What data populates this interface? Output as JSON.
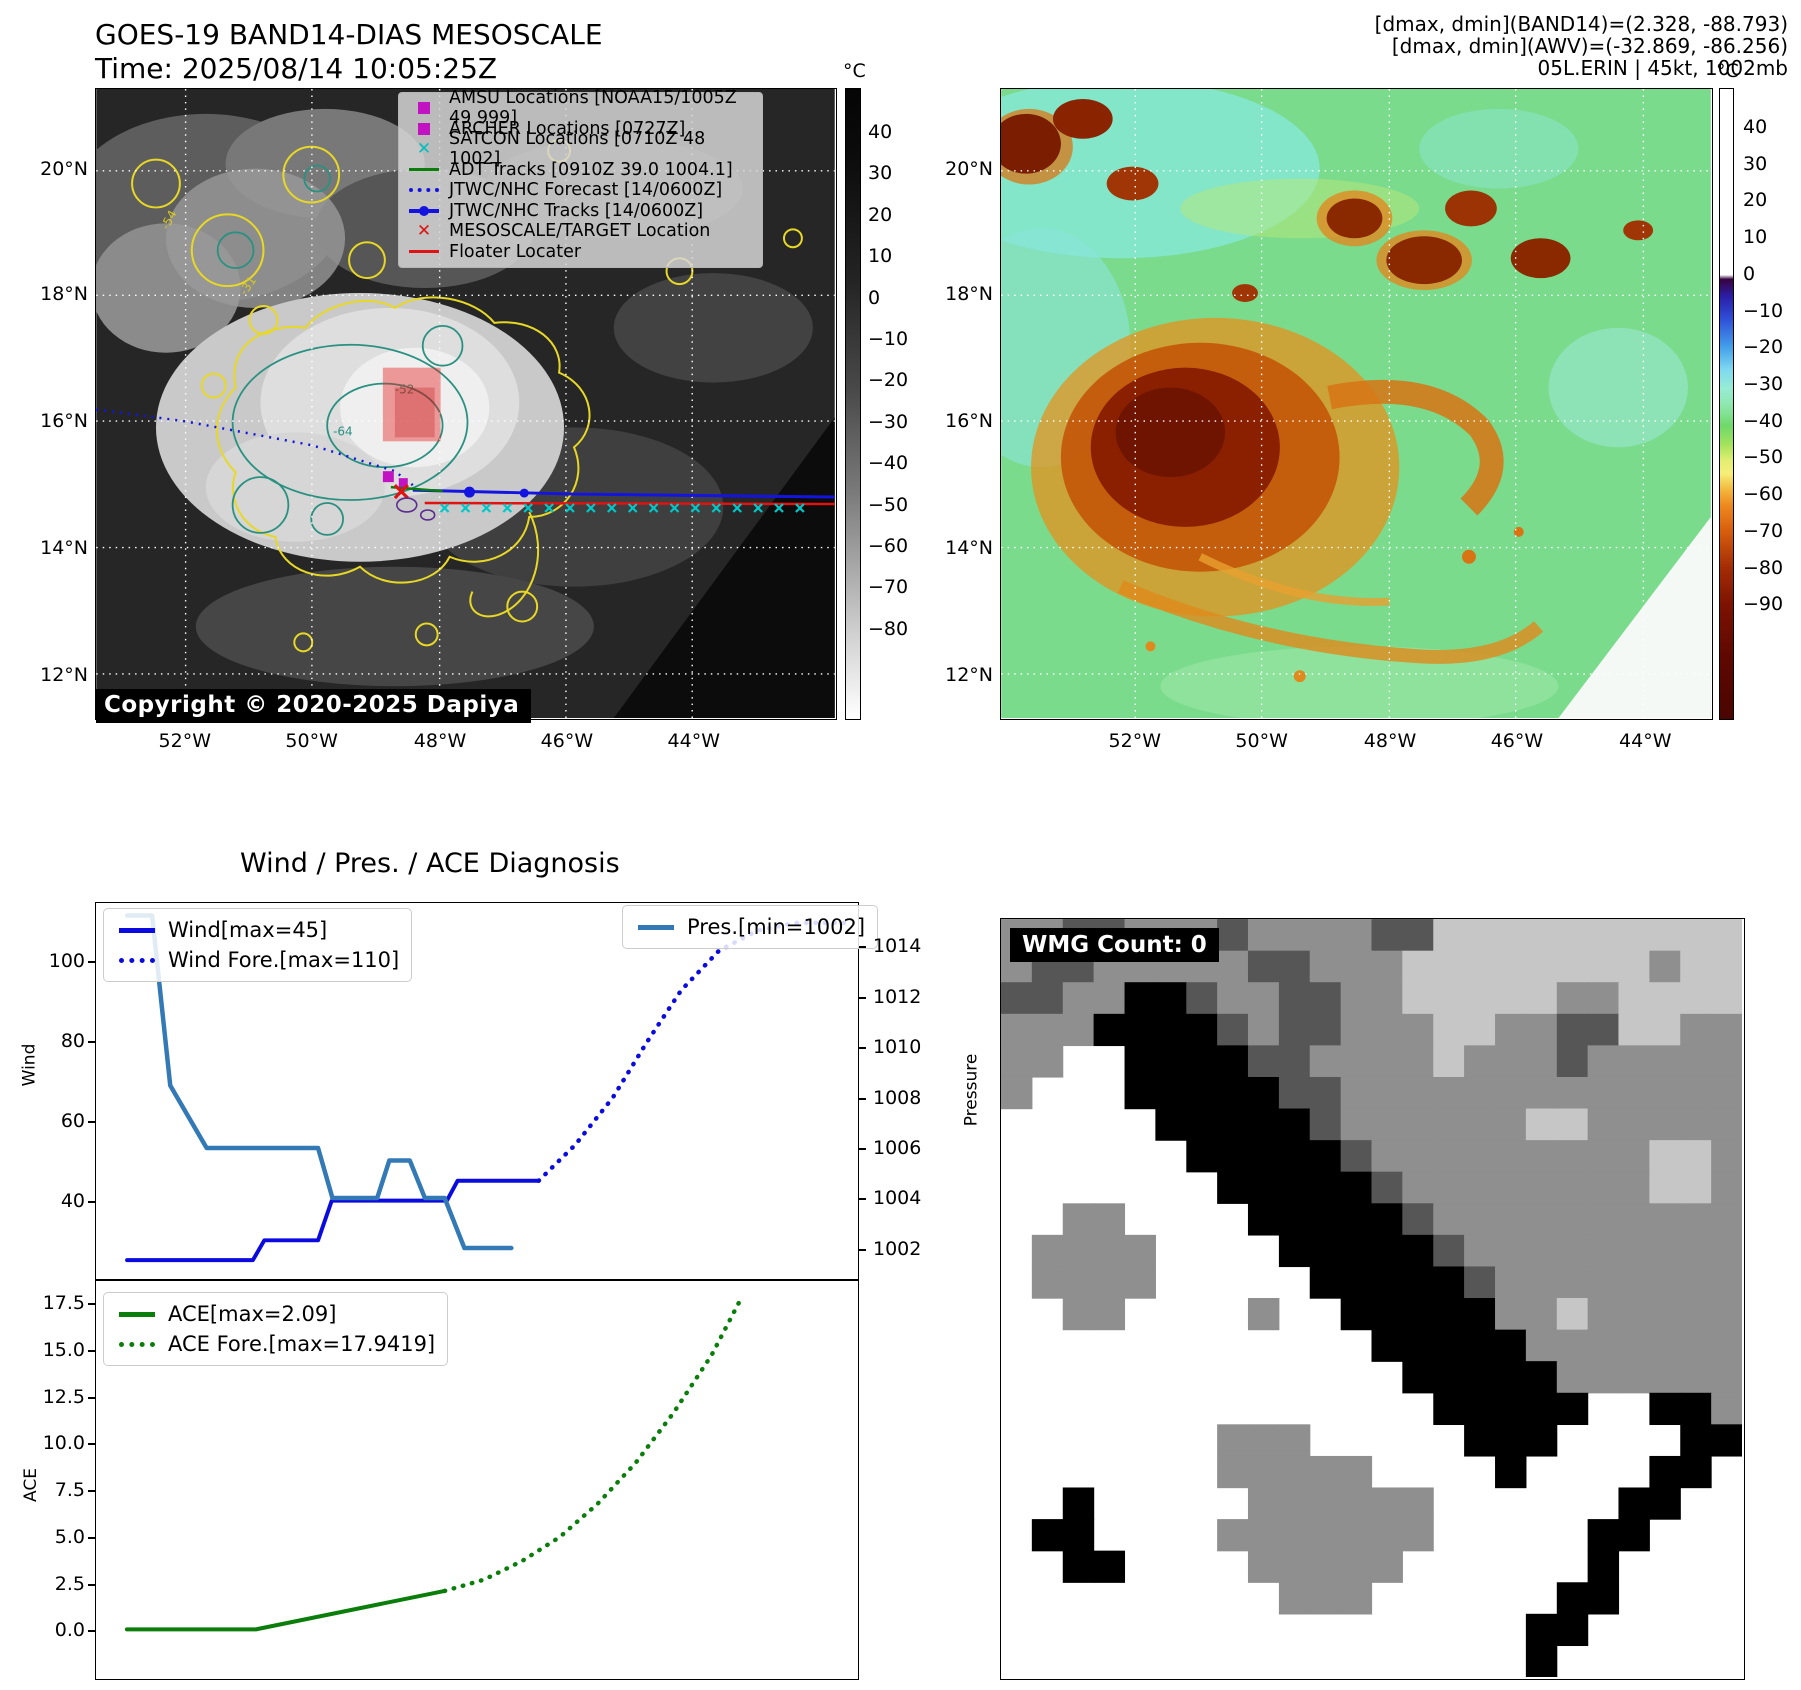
{
  "band14": {
    "title": "GOES-19 BAND14-DIAS MESOSCALE",
    "time": "Time: 2025/08/14 10:05:25Z",
    "copyright": "Copyright © 2020-2025 Dapiya",
    "colorbar": {
      "unit": "°C",
      "ticks": [
        "40",
        "30",
        "20",
        "10",
        "0",
        "−10",
        "−20",
        "−30",
        "−40",
        "−50",
        "−60",
        "−70",
        "−80"
      ]
    },
    "lat_labels": [
      "20°N",
      "18°N",
      "16°N",
      "14°N",
      "12°N"
    ],
    "lon_labels": [
      "52°W",
      "50°W",
      "48°W",
      "46°W",
      "44°W"
    ],
    "contour_labels": {
      "a": "-54",
      "b": "-31",
      "c": "-64",
      "d": "-52"
    },
    "legend": [
      {
        "marker": "square-magenta",
        "label": "AMSU Locations [NOAA15/1005Z 49 999]"
      },
      {
        "marker": "square-magenta",
        "label": "ARCHER Locations [0727Z]"
      },
      {
        "marker": "x-cyan",
        "label": "SATCON Locations [0710Z 48 1002]"
      },
      {
        "marker": "line-green",
        "label": "ADT Tracks [0910Z 39.0 1004.1]"
      },
      {
        "marker": "dotted-blue",
        "label": "JTWC/NHC Forecast [14/0600Z]"
      },
      {
        "marker": "line-dot-blue",
        "label": "JTWC/NHC Tracks [14/0600Z]"
      },
      {
        "marker": "x-red",
        "label": "MESOSCALE/TARGET Location"
      },
      {
        "marker": "line-red",
        "label": "Floater Locater"
      }
    ]
  },
  "awv": {
    "header": [
      "[dmax, dmin](BAND14)=(2.328, -88.793)",
      "[dmax, dmin](AWV)=(-32.869, -86.256)",
      "05L.ERIN | 45kt, 1002mb"
    ],
    "colorbar": {
      "unit": "°C",
      "ticks": [
        "40",
        "30",
        "20",
        "10",
        "0",
        "−10",
        "−20",
        "−30",
        "−40",
        "−50",
        "−60",
        "−70",
        "−80",
        "−90"
      ]
    },
    "lat_labels": [
      "20°N",
      "18°N",
      "16°N",
      "14°N",
      "12°N"
    ],
    "lon_labels": [
      "52°W",
      "50°W",
      "48°W",
      "46°W",
      "44°W"
    ]
  },
  "diagnosis": {
    "title": "Wind / Pres. / ACE Diagnosis",
    "wind_ylabel": "Wind",
    "pres_ylabel": "Pressure",
    "ace_ylabel": "ACE"
  },
  "wmg": {
    "label": "WMG Count: 0"
  },
  "colors": {
    "magenta": "#c213c2",
    "cyan": "#00bfbf",
    "track_blue": "#1414e0",
    "steel_blue": "#3279b5",
    "red": "#dd1414",
    "ace_green": "#0a7d0a",
    "cbar_left_stops": [
      [
        0,
        "#050505"
      ],
      [
        0.1,
        "#0b0b0b"
      ],
      [
        0.3,
        "#232323"
      ],
      [
        0.48,
        "#4a4a4a"
      ],
      [
        0.64,
        "#7a7a7a"
      ],
      [
        0.76,
        "#a8a8a8"
      ],
      [
        0.88,
        "#d6d6d6"
      ],
      [
        1,
        "#ffffff"
      ]
    ],
    "cbar_right_stops": [
      [
        0,
        "#ffffff"
      ],
      [
        0.295,
        "#ffffff"
      ],
      [
        0.302,
        "#38023f"
      ],
      [
        0.33,
        "#2b1fa8"
      ],
      [
        0.365,
        "#2e4fd8"
      ],
      [
        0.41,
        "#44a0ea"
      ],
      [
        0.445,
        "#7fd8f0"
      ],
      [
        0.475,
        "#97ecd4"
      ],
      [
        0.5,
        "#8fe8b0"
      ],
      [
        0.535,
        "#6fd96a"
      ],
      [
        0.565,
        "#a5e35c"
      ],
      [
        0.59,
        "#e2ee72"
      ],
      [
        0.61,
        "#f6ef79"
      ],
      [
        0.635,
        "#f3b93e"
      ],
      [
        0.66,
        "#ee8a20"
      ],
      [
        0.7,
        "#d95f0e"
      ],
      [
        0.76,
        "#a32c05"
      ],
      [
        0.82,
        "#7c1202"
      ],
      [
        0.9,
        "#5f0801"
      ],
      [
        1,
        "#4a0500"
      ]
    ]
  },
  "chart_data": [
    {
      "id": "wind_pres",
      "type": "line",
      "title": "Wind / Pres. / ACE Diagnosis",
      "ylabel_left": "Wind",
      "ylabel_right": "Pressure",
      "ylim_left": [
        20.5,
        115
      ],
      "yticks_left": [
        40,
        60,
        80,
        100
      ],
      "ytick_labels_left": [
        "40",
        "60",
        "80",
        "100"
      ],
      "ylim_right": [
        1000.8,
        1015.8
      ],
      "yticks_right": [
        1002,
        1004,
        1006,
        1008,
        1010,
        1012,
        1014
      ],
      "ytick_labels_right": [
        "1002",
        "1004",
        "1006",
        "1008",
        "1010",
        "1012",
        "1014"
      ],
      "series": [
        {
          "name": "Wind[max=45]",
          "axis": "left",
          "dash": "solid",
          "color": "#0b0bdf",
          "width": 4,
          "points": [
            [
              0.039,
              25
            ],
            [
              0.205,
              25
            ],
            [
              0.22,
              30
            ],
            [
              0.291,
              30
            ],
            [
              0.309,
              40
            ],
            [
              0.461,
              40
            ],
            [
              0.475,
              45
            ],
            [
              0.582,
              45
            ]
          ]
        },
        {
          "name": "Wind Fore.[max=110]",
          "axis": "left",
          "dash": "dotted",
          "color": "#0b0bdf",
          "width": 4.5,
          "points": [
            [
              0.582,
              45
            ],
            [
              0.63,
              54
            ],
            [
              0.68,
              66
            ],
            [
              0.725,
              80
            ],
            [
              0.77,
              93
            ],
            [
              0.82,
              103
            ],
            [
              0.87,
              108
            ],
            [
              0.92,
              110
            ],
            [
              0.985,
              110
            ]
          ]
        },
        {
          "name": "Pres.[min=1002]",
          "axis": "right",
          "dash": "solid",
          "color": "#3279b5",
          "width": 4.5,
          "points": [
            [
              0.039,
              1015.3
            ],
            [
              0.072,
              1015.3
            ],
            [
              0.096,
              1008.5
            ],
            [
              0.144,
              1006
            ],
            [
              0.291,
              1006
            ],
            [
              0.31,
              1004
            ],
            [
              0.369,
              1004
            ],
            [
              0.385,
              1005.5
            ],
            [
              0.412,
              1005.5
            ],
            [
              0.432,
              1004
            ],
            [
              0.458,
              1004
            ],
            [
              0.484,
              1002
            ],
            [
              0.546,
              1002
            ]
          ]
        }
      ]
    },
    {
      "id": "ace",
      "type": "line",
      "ylabel_left": "ACE",
      "ylim_left": [
        -2.6,
        18.8
      ],
      "yticks_left": [
        0.0,
        2.5,
        5.0,
        7.5,
        10.0,
        12.5,
        15.0,
        17.5
      ],
      "ytick_labels_left": [
        "0.0",
        "2.5",
        "5.0",
        "7.5",
        "10.0",
        "12.5",
        "15.0",
        "17.5"
      ],
      "series": [
        {
          "name": "ACE[max=2.09]",
          "axis": "left",
          "dash": "solid",
          "color": "#0a7d0a",
          "width": 4,
          "points": [
            [
              0.039,
              0.02
            ],
            [
              0.209,
              0.02
            ],
            [
              0.458,
              2.09
            ]
          ]
        },
        {
          "name": "ACE Fore.[max=17.9419]",
          "axis": "left",
          "dash": "dotted",
          "color": "#0a7d0a",
          "width": 4.5,
          "points": [
            [
              0.458,
              2.09
            ],
            [
              0.51,
              2.7
            ],
            [
              0.56,
              3.7
            ],
            [
              0.61,
              5.0
            ],
            [
              0.66,
              6.8
            ],
            [
              0.71,
              9.0
            ],
            [
              0.76,
              11.7
            ],
            [
              0.81,
              14.8
            ],
            [
              0.85,
              17.9419
            ]
          ]
        }
      ]
    },
    {
      "id": "wmg_grid",
      "type": "heatmap",
      "palette": [
        "#ffffff",
        "#c6c6c6",
        "#8f8f8f",
        "#565656",
        "#000000"
      ],
      "rows": [
        [
          2,
          2,
          3,
          3,
          2,
          2,
          2,
          3,
          2,
          2,
          2,
          2,
          3,
          3,
          1,
          1,
          1,
          1,
          1,
          1,
          1,
          1,
          1,
          1
        ],
        [
          2,
          3,
          3,
          2,
          2,
          2,
          2,
          2,
          3,
          3,
          2,
          2,
          2,
          1,
          1,
          1,
          1,
          1,
          1,
          1,
          1,
          2,
          1,
          1
        ],
        [
          3,
          3,
          2,
          2,
          4,
          4,
          3,
          2,
          2,
          3,
          3,
          2,
          2,
          1,
          1,
          1,
          1,
          1,
          2,
          2,
          1,
          1,
          1,
          1
        ],
        [
          2,
          2,
          2,
          4,
          4,
          4,
          4,
          3,
          2,
          3,
          3,
          2,
          2,
          2,
          1,
          1,
          2,
          2,
          3,
          3,
          1,
          1,
          2,
          2
        ],
        [
          2,
          2,
          0,
          0,
          4,
          4,
          4,
          4,
          3,
          3,
          2,
          2,
          2,
          2,
          1,
          2,
          2,
          2,
          3,
          2,
          2,
          2,
          2,
          2
        ],
        [
          2,
          0,
          0,
          0,
          4,
          4,
          4,
          4,
          4,
          3,
          3,
          2,
          2,
          2,
          2,
          2,
          2,
          2,
          2,
          2,
          2,
          2,
          2,
          2
        ],
        [
          0,
          0,
          0,
          0,
          0,
          4,
          4,
          4,
          4,
          4,
          3,
          2,
          2,
          2,
          2,
          2,
          2,
          1,
          1,
          2,
          2,
          2,
          2,
          2
        ],
        [
          0,
          0,
          0,
          0,
          0,
          0,
          4,
          4,
          4,
          4,
          4,
          3,
          2,
          2,
          2,
          2,
          2,
          2,
          2,
          2,
          2,
          1,
          1,
          2
        ],
        [
          0,
          0,
          0,
          0,
          0,
          0,
          0,
          4,
          4,
          4,
          4,
          4,
          3,
          2,
          2,
          2,
          2,
          2,
          2,
          2,
          2,
          1,
          1,
          2
        ],
        [
          0,
          0,
          2,
          2,
          0,
          0,
          0,
          0,
          4,
          4,
          4,
          4,
          4,
          3,
          2,
          2,
          2,
          2,
          2,
          2,
          2,
          2,
          2,
          2
        ],
        [
          0,
          2,
          2,
          2,
          2,
          0,
          0,
          0,
          0,
          4,
          4,
          4,
          4,
          4,
          3,
          2,
          2,
          2,
          2,
          2,
          2,
          2,
          2,
          2
        ],
        [
          0,
          2,
          2,
          2,
          2,
          0,
          0,
          0,
          0,
          0,
          4,
          4,
          4,
          4,
          4,
          3,
          2,
          2,
          2,
          2,
          2,
          2,
          2,
          2
        ],
        [
          0,
          0,
          2,
          2,
          0,
          0,
          0,
          0,
          2,
          0,
          0,
          4,
          4,
          4,
          4,
          4,
          2,
          2,
          1,
          2,
          2,
          2,
          2,
          2
        ],
        [
          0,
          0,
          0,
          0,
          0,
          0,
          0,
          0,
          0,
          0,
          0,
          0,
          4,
          4,
          4,
          4,
          4,
          2,
          2,
          2,
          2,
          2,
          2,
          2
        ],
        [
          0,
          0,
          0,
          0,
          0,
          0,
          0,
          0,
          0,
          0,
          0,
          0,
          0,
          4,
          4,
          4,
          4,
          4,
          2,
          2,
          2,
          2,
          2,
          2
        ],
        [
          0,
          0,
          0,
          0,
          0,
          0,
          0,
          0,
          0,
          0,
          0,
          0,
          0,
          0,
          4,
          4,
          4,
          4,
          4,
          0,
          0,
          4,
          4,
          2
        ],
        [
          0,
          0,
          0,
          0,
          0,
          0,
          0,
          2,
          2,
          2,
          0,
          0,
          0,
          0,
          0,
          4,
          4,
          4,
          0,
          0,
          0,
          0,
          4,
          4
        ],
        [
          0,
          0,
          0,
          0,
          0,
          0,
          0,
          2,
          2,
          2,
          2,
          2,
          0,
          0,
          0,
          0,
          4,
          0,
          0,
          0,
          0,
          4,
          4,
          0
        ],
        [
          0,
          0,
          4,
          0,
          0,
          0,
          0,
          0,
          2,
          2,
          2,
          2,
          2,
          2,
          0,
          0,
          0,
          0,
          0,
          0,
          4,
          4,
          0,
          0
        ],
        [
          0,
          4,
          4,
          0,
          0,
          0,
          0,
          2,
          2,
          2,
          2,
          2,
          2,
          2,
          0,
          0,
          0,
          0,
          0,
          4,
          4,
          0,
          0,
          0
        ],
        [
          0,
          0,
          4,
          4,
          0,
          0,
          0,
          0,
          2,
          2,
          2,
          2,
          2,
          0,
          0,
          0,
          0,
          0,
          0,
          4,
          0,
          0,
          0,
          0
        ],
        [
          0,
          0,
          0,
          0,
          0,
          0,
          0,
          0,
          0,
          2,
          2,
          2,
          0,
          0,
          0,
          0,
          0,
          0,
          4,
          4,
          0,
          0,
          0,
          0
        ],
        [
          0,
          0,
          0,
          0,
          0,
          0,
          0,
          0,
          0,
          0,
          0,
          0,
          0,
          0,
          0,
          0,
          0,
          4,
          4,
          0,
          0,
          0,
          0,
          0
        ],
        [
          0,
          0,
          0,
          0,
          0,
          0,
          0,
          0,
          0,
          0,
          0,
          0,
          0,
          0,
          0,
          0,
          0,
          4,
          0,
          0,
          0,
          0,
          0,
          0
        ]
      ]
    }
  ]
}
